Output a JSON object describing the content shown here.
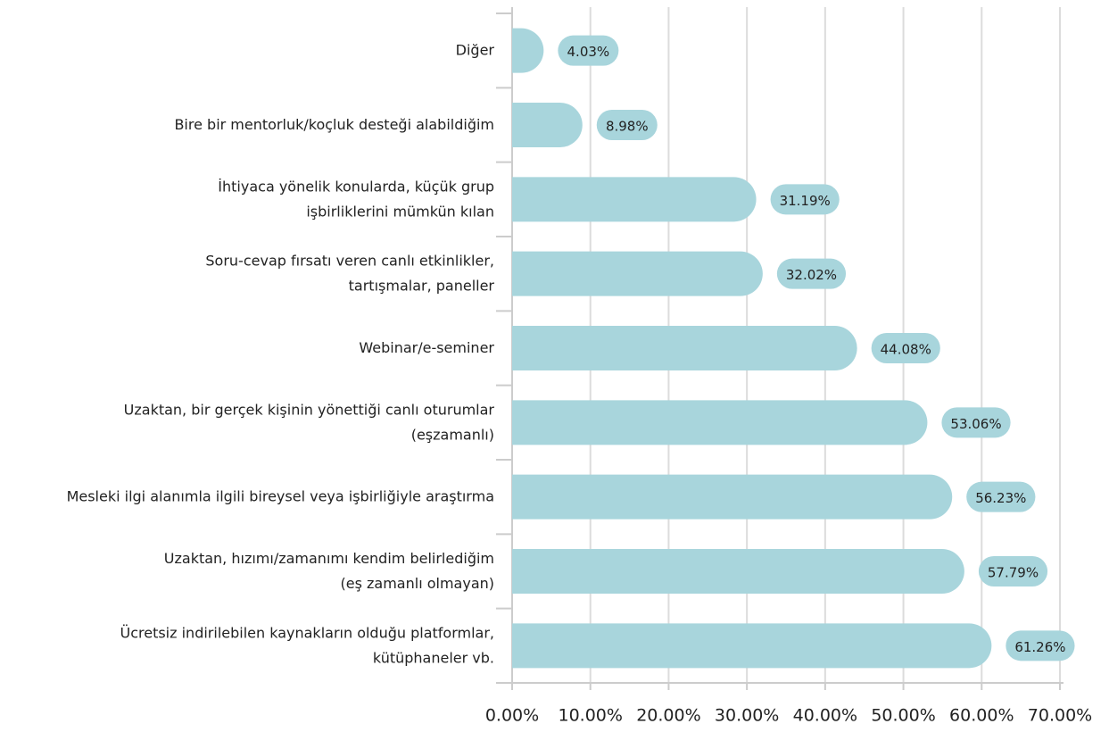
{
  "chart_data": {
    "type": "bar",
    "orientation": "horizontal",
    "categories": [
      "Diğer",
      "Bire bir mentorluk/koçluk desteği alabildiğim",
      "İhtiyaca yönelik konularda, küçük grup\nişbirliklerini mümkün kılan",
      "Soru-cevap fırsatı veren canlı etkinlikler,\ntartışmalar, paneller",
      "Webinar/e-seminer",
      "Uzaktan, bir gerçek kişinin yönettiği canlı oturumlar\n(eşzamanlı)",
      "Mesleki ilgi alanımla ilgili bireysel veya işbirliğiyle araştırma",
      "Uzaktan, hızımı/zamanımı kendim belirlediğim\n(eş zamanlı olmayan)",
      "Ücretsiz indirilebilen kaynakların olduğu platformlar,\nkütüphaneler vb."
    ],
    "values": [
      4.03,
      8.98,
      31.19,
      32.02,
      44.08,
      53.06,
      56.23,
      57.79,
      61.26
    ],
    "value_labels": [
      "4.03%",
      "8.98%",
      "31.19%",
      "32.02%",
      "44.08%",
      "53.06%",
      "56.23%",
      "57.79%",
      "61.26%"
    ],
    "color": "#a8d5dc",
    "xlim": [
      0,
      70
    ],
    "xticks": [
      {
        "value": 0,
        "label": "0.00%"
      },
      {
        "value": 10,
        "label": "10.00%"
      },
      {
        "value": 20,
        "label": "20.00%"
      },
      {
        "value": 30,
        "label": "30.00%"
      },
      {
        "value": 40,
        "label": "40.00%"
      },
      {
        "value": 50,
        "label": "50.00%"
      },
      {
        "value": 60,
        "label": "60.00%"
      },
      {
        "value": 70,
        "label": "70.00%"
      }
    ],
    "grid": true
  }
}
